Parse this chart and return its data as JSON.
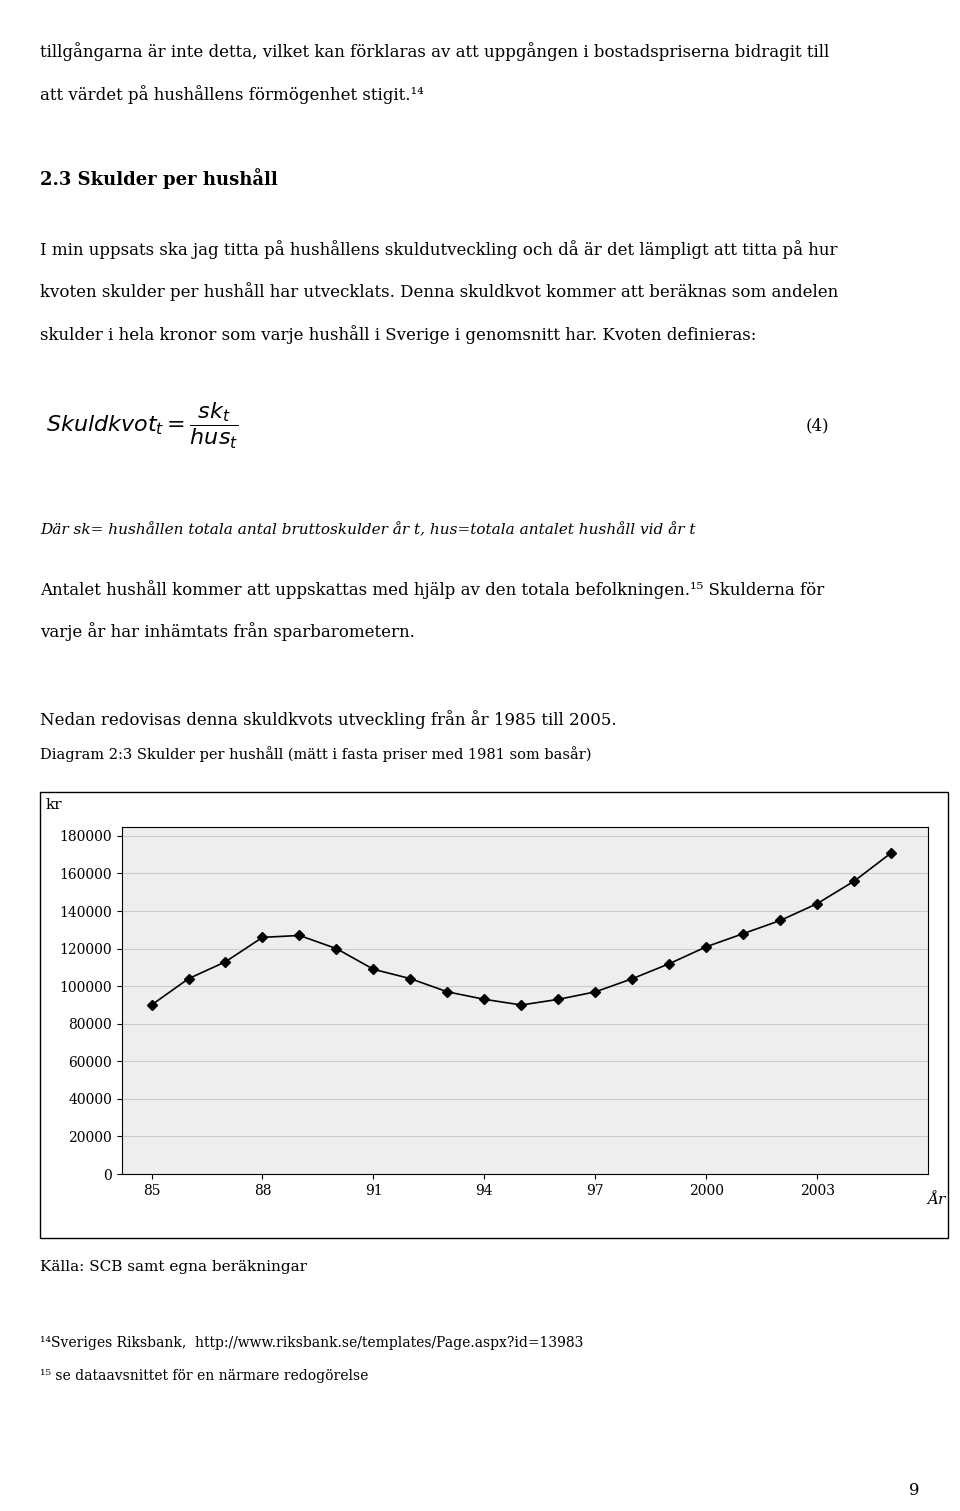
{
  "years": [
    1985,
    1986,
    1987,
    1988,
    1989,
    1990,
    1991,
    1992,
    1993,
    1994,
    1995,
    1996,
    1997,
    1998,
    1999,
    2000,
    2001,
    2002,
    2003,
    2004,
    2005
  ],
  "values": [
    90000,
    104000,
    113000,
    126000,
    127000,
    120000,
    109000,
    104000,
    97000,
    93000,
    90000,
    93000,
    97000,
    104000,
    112000,
    121000,
    128000,
    135000,
    144000,
    156000,
    171000
  ],
  "diagram_label": "Diagram 2:3 Skulder per hushåll (mätt i fasta priser med 1981 som basår)",
  "ylabel": "kr",
  "xlabel": "År",
  "source_text": "Källa: SCB samt egna beräkningar",
  "yticks": [
    0,
    20000,
    40000,
    60000,
    80000,
    100000,
    120000,
    140000,
    160000,
    180000
  ],
  "ylim": [
    0,
    185000
  ],
  "line_color": "#000000",
  "marker": "D",
  "marker_size": 5,
  "grid_color": "#cccccc",
  "plot_area_color": "#eeeeee",
  "tick_fontsize": 10,
  "footnote14": "¹⁴Sveriges Riksbank,  http://www.riksbank.se/templates/Page.aspx?id=13983",
  "footnote15": "¹⁵ se dataavsnittet för en närmare redogörelse",
  "page_number": "9"
}
